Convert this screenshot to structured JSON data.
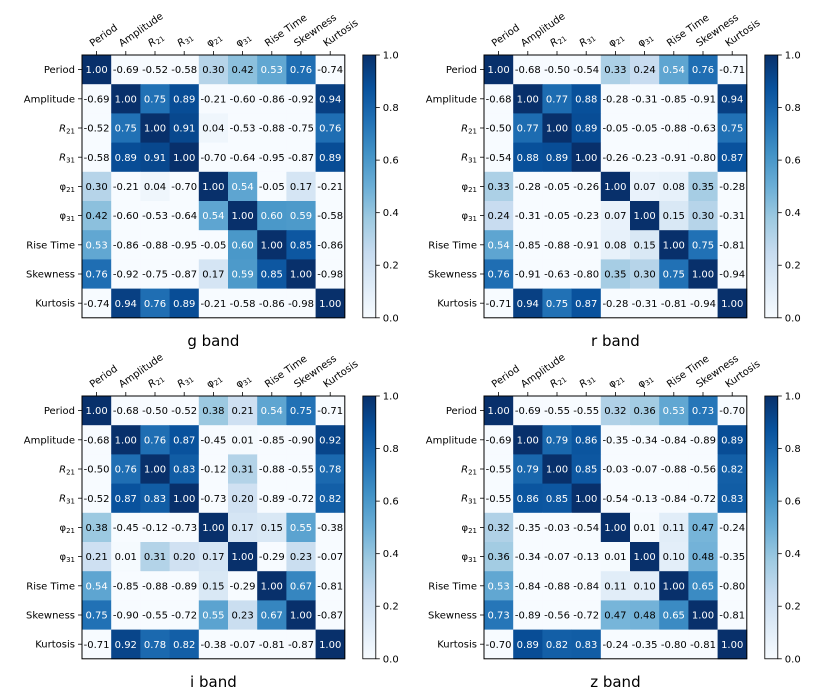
{
  "colors": {
    "low": "#f7fbff",
    "high": "#08306b",
    "cmap": "Blues"
  },
  "chart_data": [
    {
      "type": "heatmap",
      "title": "g band",
      "labels": [
        "Period",
        "Amplitude",
        "R21",
        "R31",
        "φ21",
        "φ31",
        "Rise Time",
        "Skewness",
        "Kurtosis"
      ],
      "values": [
        [
          1.0,
          -0.69,
          -0.52,
          -0.58,
          0.3,
          0.42,
          0.53,
          0.76,
          -0.74
        ],
        [
          -0.69,
          1.0,
          0.75,
          0.89,
          -0.21,
          -0.6,
          -0.86,
          -0.92,
          0.94
        ],
        [
          -0.52,
          0.75,
          1.0,
          0.91,
          0.04,
          -0.53,
          -0.88,
          -0.75,
          0.76
        ],
        [
          -0.58,
          0.89,
          0.91,
          1.0,
          -0.7,
          -0.64,
          -0.95,
          -0.87,
          0.89
        ],
        [
          0.3,
          -0.21,
          0.04,
          -0.7,
          1.0,
          0.54,
          -0.05,
          0.17,
          -0.21
        ],
        [
          0.42,
          -0.6,
          -0.53,
          -0.64,
          0.54,
          1.0,
          0.6,
          0.59,
          -0.58
        ],
        [
          0.53,
          -0.86,
          -0.88,
          -0.95,
          -0.05,
          0.6,
          1.0,
          0.85,
          -0.86
        ],
        [
          0.76,
          -0.92,
          -0.75,
          -0.87,
          0.17,
          0.59,
          0.85,
          1.0,
          -0.98
        ],
        [
          -0.74,
          0.94,
          0.76,
          0.89,
          -0.21,
          -0.58,
          -0.86,
          -0.98,
          1.0
        ]
      ],
      "colorbar": {
        "range": [
          0,
          1
        ],
        "ticks": [
          "0.0",
          "0.2",
          "0.4",
          "0.6",
          "0.8",
          "1.0"
        ]
      }
    },
    {
      "type": "heatmap",
      "title": "r band",
      "labels": [
        "Period",
        "Amplitude",
        "R21",
        "R31",
        "φ21",
        "φ31",
        "Rise Time",
        "Skewness",
        "Kurtosis"
      ],
      "values": [
        [
          1.0,
          -0.68,
          -0.5,
          -0.54,
          0.33,
          0.24,
          0.54,
          0.76,
          -0.71
        ],
        [
          -0.68,
          1.0,
          0.77,
          0.88,
          -0.28,
          -0.31,
          -0.85,
          -0.91,
          0.94
        ],
        [
          -0.5,
          0.77,
          1.0,
          0.89,
          -0.05,
          -0.05,
          -0.88,
          -0.63,
          0.75
        ],
        [
          -0.54,
          0.88,
          0.89,
          1.0,
          -0.26,
          -0.23,
          -0.91,
          -0.8,
          0.87
        ],
        [
          0.33,
          -0.28,
          -0.05,
          -0.26,
          1.0,
          0.07,
          0.08,
          0.35,
          -0.28
        ],
        [
          0.24,
          -0.31,
          -0.05,
          -0.23,
          0.07,
          1.0,
          0.15,
          0.3,
          -0.31
        ],
        [
          0.54,
          -0.85,
          -0.88,
          -0.91,
          0.08,
          0.15,
          1.0,
          0.75,
          -0.81
        ],
        [
          0.76,
          -0.91,
          -0.63,
          -0.8,
          0.35,
          0.3,
          0.75,
          1.0,
          -0.94
        ],
        [
          -0.71,
          0.94,
          0.75,
          0.87,
          -0.28,
          -0.31,
          -0.81,
          -0.94,
          1.0
        ]
      ],
      "colorbar": {
        "range": [
          0,
          1
        ],
        "ticks": [
          "0.0",
          "0.2",
          "0.4",
          "0.6",
          "0.8",
          "1.0"
        ]
      }
    },
    {
      "type": "heatmap",
      "title": "i band",
      "labels": [
        "Period",
        "Amplitude",
        "R21",
        "R31",
        "φ21",
        "φ31",
        "Rise Time",
        "Skewness",
        "Kurtosis"
      ],
      "values": [
        [
          1.0,
          -0.68,
          -0.5,
          -0.52,
          0.38,
          0.21,
          0.54,
          0.75,
          -0.71
        ],
        [
          -0.68,
          1.0,
          0.76,
          0.87,
          -0.45,
          0.01,
          -0.85,
          -0.9,
          0.92
        ],
        [
          -0.5,
          0.76,
          1.0,
          0.83,
          -0.12,
          0.31,
          -0.88,
          -0.55,
          0.78
        ],
        [
          -0.52,
          0.87,
          0.83,
          1.0,
          -0.73,
          0.2,
          -0.89,
          -0.72,
          0.82
        ],
        [
          0.38,
          -0.45,
          -0.12,
          -0.73,
          1.0,
          0.17,
          0.15,
          0.55,
          -0.38
        ],
        [
          0.21,
          0.01,
          0.31,
          0.2,
          0.17,
          1.0,
          -0.29,
          0.23,
          -0.07
        ],
        [
          0.54,
          -0.85,
          -0.88,
          -0.89,
          0.15,
          -0.29,
          1.0,
          0.67,
          -0.81
        ],
        [
          0.75,
          -0.9,
          -0.55,
          -0.72,
          0.55,
          0.23,
          0.67,
          1.0,
          -0.87
        ],
        [
          -0.71,
          0.92,
          0.78,
          0.82,
          -0.38,
          -0.07,
          -0.81,
          -0.87,
          1.0
        ]
      ],
      "colorbar": {
        "range": [
          0,
          1
        ],
        "ticks": [
          "0.0",
          "0.2",
          "0.4",
          "0.6",
          "0.8",
          "1.0"
        ]
      }
    },
    {
      "type": "heatmap",
      "title": "z band",
      "labels": [
        "Period",
        "Amplitude",
        "R21",
        "R31",
        "φ21",
        "φ31",
        "Rise Time",
        "Skewness",
        "Kurtosis"
      ],
      "values": [
        [
          1.0,
          -0.69,
          -0.55,
          -0.55,
          0.32,
          0.36,
          0.53,
          0.73,
          -0.7
        ],
        [
          -0.69,
          1.0,
          0.79,
          0.86,
          -0.35,
          -0.34,
          -0.84,
          -0.89,
          0.89
        ],
        [
          -0.55,
          0.79,
          1.0,
          0.85,
          -0.03,
          -0.07,
          -0.88,
          -0.56,
          0.82
        ],
        [
          -0.55,
          0.86,
          0.85,
          1.0,
          -0.54,
          -0.13,
          -0.84,
          -0.72,
          0.83
        ],
        [
          0.32,
          -0.35,
          -0.03,
          -0.54,
          1.0,
          0.01,
          0.11,
          0.47,
          -0.24
        ],
        [
          0.36,
          -0.34,
          -0.07,
          -0.13,
          0.01,
          1.0,
          0.1,
          0.48,
          -0.35
        ],
        [
          0.53,
          -0.84,
          -0.88,
          -0.84,
          0.11,
          0.1,
          1.0,
          0.65,
          -0.8
        ],
        [
          0.73,
          -0.89,
          -0.56,
          -0.72,
          0.47,
          0.48,
          0.65,
          1.0,
          -0.81
        ],
        [
          -0.7,
          0.89,
          0.82,
          0.83,
          -0.24,
          -0.35,
          -0.8,
          -0.81,
          1.0
        ]
      ],
      "colorbar": {
        "range": [
          0,
          1
        ],
        "ticks": [
          "0.0",
          "0.2",
          "0.4",
          "0.6",
          "0.8",
          "1.0"
        ]
      }
    }
  ]
}
